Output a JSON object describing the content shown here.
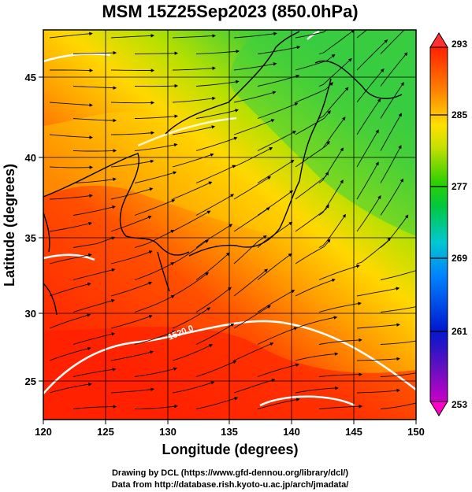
{
  "title": "MSM 15Z25Sep2023 (850.0hPa)",
  "axes": {
    "xlabel": "Longitude (degrees)",
    "ylabel": "Latitude  (degrees)",
    "xlim": [
      120,
      150
    ],
    "ylim": [
      22.5,
      47.5
    ],
    "xticks": [
      "120",
      "125",
      "130",
      "135",
      "140",
      "145",
      "150"
    ],
    "yticks": [
      "25",
      "30",
      "35",
      "40",
      "45"
    ]
  },
  "colorbar": {
    "range": [
      253,
      293
    ],
    "labels": [
      "293",
      "285",
      "277",
      "269",
      "261",
      "253"
    ]
  },
  "contour_label": "1520.0",
  "credits": {
    "line1": "Drawing by DCL (https://www.gfd-dennou.org/library/dcl/)",
    "line2": "Data from http://database.rish.kyoto-u.ac.jp/arch/jmadata/"
  },
  "colors": {
    "warm": "#ff3b00",
    "mid": "#ffe000",
    "cool": "#30c830"
  }
}
